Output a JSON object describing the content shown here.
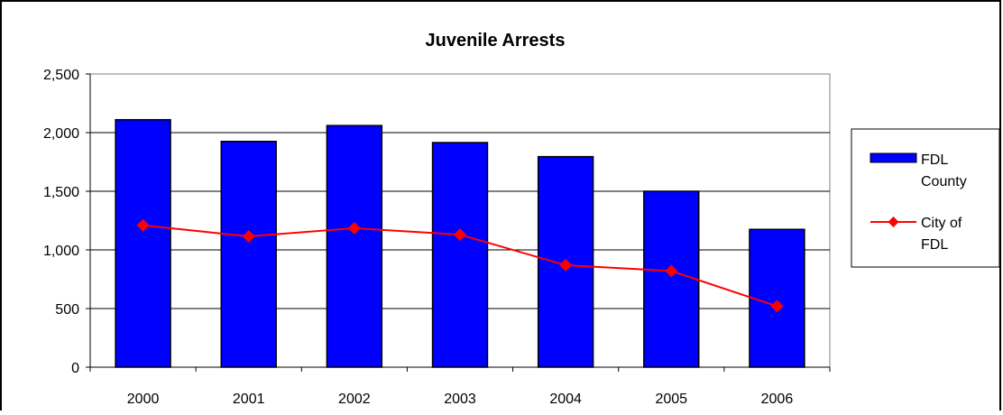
{
  "chart_data": {
    "type": "bar",
    "title": "Juvenile Arrests",
    "xlabel": "",
    "ylabel": "",
    "categories": [
      "2000",
      "2001",
      "2002",
      "2003",
      "2004",
      "2005",
      "2006"
    ],
    "ylim": [
      0,
      2500
    ],
    "yticks": [
      0,
      500,
      1000,
      1500,
      2000,
      2500
    ],
    "ytick_labels": [
      "0",
      "500",
      "1,000",
      "1,500",
      "2,000",
      "2,500"
    ],
    "grid": "horizontal",
    "legend_position": "right",
    "series": [
      {
        "name": "FDL County",
        "type": "bar",
        "color": "#0000FF",
        "values": [
          2110,
          1925,
          2060,
          1915,
          1795,
          1500,
          1175
        ]
      },
      {
        "name": "City of FDL",
        "type": "line",
        "marker": "diamond",
        "color": "#FF0000",
        "values": [
          1210,
          1115,
          1185,
          1130,
          870,
          820,
          520
        ]
      }
    ],
    "legend": {
      "bar_label_lines": [
        "FDL",
        "County"
      ],
      "line_label_lines": [
        "City of",
        "FDL"
      ]
    }
  }
}
